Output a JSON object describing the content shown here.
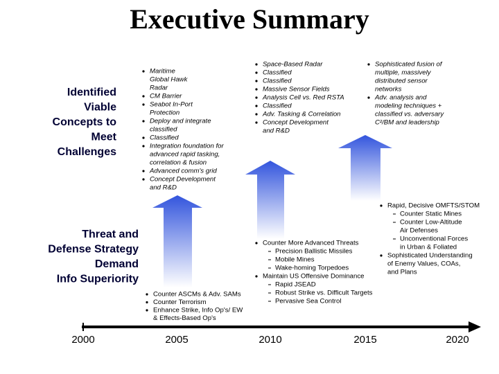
{
  "title": "Executive Summary",
  "left_labels": {
    "concepts": [
      "Identified",
      "Viable",
      "Concepts to",
      "Meet",
      "Challenges"
    ],
    "threat": [
      "Threat and",
      "Defense Strategy",
      "Demand",
      "Info Superiority"
    ]
  },
  "timeline": {
    "years": [
      "2000",
      "2005",
      "2010",
      "2015",
      "2020"
    ]
  },
  "blocks": {
    "concepts_2005": {
      "items": [
        {
          "lines": [
            "Maritime",
            "Global Hawk",
            "Radar"
          ]
        },
        {
          "lines": [
            "CM Barrier"
          ]
        },
        {
          "lines": [
            "Seabot In-Port",
            "Protection"
          ]
        },
        {
          "lines": [
            "Deploy and integrate",
            "classified"
          ]
        },
        {
          "lines": [
            "Classified"
          ]
        },
        {
          "lines": [
            "Integration foundation for",
            "advanced rapid tasking,",
            "correlation & fusion"
          ]
        },
        {
          "lines": [
            "Advanced comm's grid"
          ]
        },
        {
          "lines": [
            "Concept Development",
            "and R&D"
          ]
        }
      ]
    },
    "concepts_2010": {
      "items": [
        {
          "lines": [
            "Space-Based Radar"
          ]
        },
        {
          "lines": [
            "Classified"
          ]
        },
        {
          "lines": [
            "Classified"
          ]
        },
        {
          "lines": [
            "Massive Sensor Fields"
          ]
        },
        {
          "lines": [
            "Analysis Cell vs. Red RSTA"
          ]
        },
        {
          "lines": [
            "Classified"
          ]
        },
        {
          "lines": [
            "Adv. Tasking & Correlation"
          ]
        },
        {
          "lines": [
            "Concept Development",
            "and R&D"
          ]
        }
      ]
    },
    "concepts_2015": {
      "items": [
        {
          "lines": [
            "Sophisticated fusion of",
            "multiple, massively",
            "distributed sensor",
            "networks"
          ]
        },
        {
          "lines": [
            "Adv. analysis and",
            "modeling techniques +",
            "classified vs. adversary",
            "C²/BM and leadership"
          ]
        }
      ]
    },
    "threats_2005": {
      "items": [
        {
          "lines": [
            "Counter ASCMs & Adv. SAMs"
          ]
        },
        {
          "lines": [
            "Counter Terrorism"
          ]
        },
        {
          "lines": [
            "Enhance Strike, Info Op's/ EW",
            "& Effects-Based Op's"
          ]
        }
      ]
    },
    "threats_2010": {
      "items": [
        {
          "lines": [
            "Counter More Advanced Threats"
          ],
          "subitems": [
            [
              "Precision Ballistic Missiles"
            ],
            [
              "Mobile Mines"
            ],
            [
              "Wake-homing Torpedoes"
            ]
          ]
        },
        {
          "lines": [
            "Maintain US Offensive Dominance"
          ],
          "subitems": [
            [
              "Rapid JSEAD"
            ],
            [
              "Robust Strike vs. Difficult Targets"
            ],
            [
              "Pervasive Sea Control"
            ]
          ]
        }
      ]
    },
    "threats_2015": {
      "items": [
        {
          "lines": [
            "Rapid, Decisive OMFTS/STOM"
          ],
          "subitems": [
            [
              "Counter Static Mines"
            ],
            [
              "Counter Low-Altitude",
              "Air Defenses"
            ],
            [
              "Unconventional Forces",
              "in Urban & Foliated"
            ]
          ]
        },
        {
          "lines": [
            "Sophisticated Understanding",
            "of Enemy Values, COAs,",
            "and Plans"
          ]
        }
      ]
    }
  }
}
